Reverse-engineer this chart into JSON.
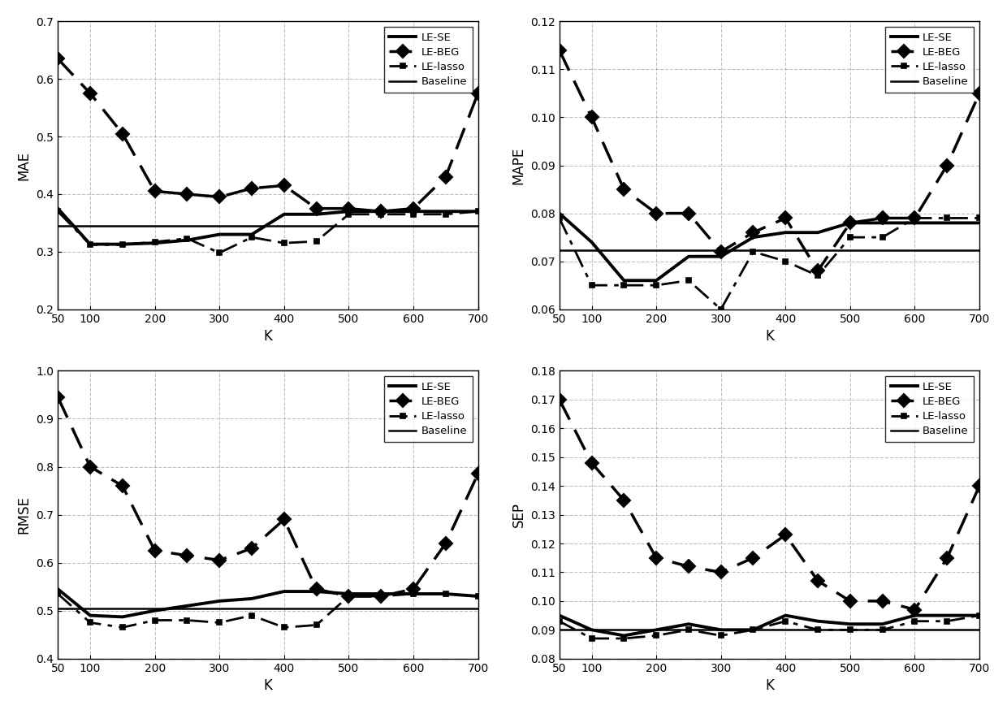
{
  "K": [
    50,
    100,
    150,
    200,
    250,
    300,
    350,
    400,
    450,
    500,
    550,
    600,
    650,
    700
  ],
  "MAE": {
    "LE_SE": [
      0.375,
      0.313,
      0.313,
      0.315,
      0.32,
      0.33,
      0.33,
      0.365,
      0.365,
      0.37,
      0.37,
      0.37,
      0.37,
      0.37
    ],
    "LE_BEG": [
      0.635,
      0.575,
      0.505,
      0.405,
      0.4,
      0.395,
      0.41,
      0.415,
      0.375,
      0.375,
      0.37,
      0.375,
      0.43,
      0.575
    ],
    "LE_lasso": [
      0.37,
      0.312,
      0.312,
      0.317,
      0.323,
      0.298,
      0.325,
      0.315,
      0.318,
      0.365,
      0.365,
      0.365,
      0.365,
      0.37
    ],
    "Baseline": 0.345
  },
  "MAPE": {
    "LE_SE": [
      0.08,
      0.074,
      0.066,
      0.066,
      0.071,
      0.071,
      0.075,
      0.076,
      0.076,
      0.078,
      0.078,
      0.078,
      0.078,
      0.078
    ],
    "LE_BEG": [
      0.114,
      0.1,
      0.085,
      0.08,
      0.08,
      0.072,
      0.076,
      0.079,
      0.068,
      0.078,
      0.079,
      0.079,
      0.09,
      0.105
    ],
    "LE_lasso": [
      0.079,
      0.065,
      0.065,
      0.065,
      0.066,
      0.06,
      0.072,
      0.07,
      0.067,
      0.075,
      0.075,
      0.079,
      0.079,
      0.079
    ],
    "Baseline": 0.0723
  },
  "RMSE": {
    "LE_SE": [
      0.545,
      0.49,
      0.487,
      0.5,
      0.51,
      0.52,
      0.525,
      0.54,
      0.54,
      0.535,
      0.535,
      0.535,
      0.535,
      0.53
    ],
    "LE_BEG": [
      0.945,
      0.8,
      0.76,
      0.625,
      0.615,
      0.605,
      0.63,
      0.69,
      0.545,
      0.53,
      0.53,
      0.545,
      0.64,
      0.785
    ],
    "LE_lasso": [
      0.535,
      0.475,
      0.465,
      0.48,
      0.48,
      0.475,
      0.49,
      0.465,
      0.47,
      0.53,
      0.53,
      0.535,
      0.535,
      0.53
    ],
    "Baseline": 0.505
  },
  "SEP": {
    "LE_SE": [
      0.095,
      0.09,
      0.088,
      0.09,
      0.092,
      0.09,
      0.09,
      0.095,
      0.093,
      0.092,
      0.092,
      0.095,
      0.095,
      0.095
    ],
    "LE_BEG": [
      0.17,
      0.148,
      0.135,
      0.115,
      0.112,
      0.11,
      0.115,
      0.123,
      0.107,
      0.1,
      0.1,
      0.097,
      0.115,
      0.14
    ],
    "LE_lasso": [
      0.093,
      0.087,
      0.087,
      0.088,
      0.09,
      0.088,
      0.09,
      0.093,
      0.09,
      0.09,
      0.09,
      0.093,
      0.093,
      0.095
    ],
    "Baseline": 0.09
  },
  "ylim_MAE": [
    0.2,
    0.7
  ],
  "ylim_MAPE": [
    0.06,
    0.12
  ],
  "ylim_RMSE": [
    0.4,
    1.0
  ],
  "ylim_SEP": [
    0.08,
    0.18
  ],
  "yticks_MAE": [
    0.2,
    0.3,
    0.4,
    0.5,
    0.6,
    0.7
  ],
  "yticks_MAPE": [
    0.06,
    0.07,
    0.08,
    0.09,
    0.1,
    0.11,
    0.12
  ],
  "yticks_RMSE": [
    0.4,
    0.5,
    0.6,
    0.7,
    0.8,
    0.9,
    1.0
  ],
  "yticks_SEP": [
    0.08,
    0.09,
    0.1,
    0.11,
    0.12,
    0.13,
    0.14,
    0.15,
    0.16,
    0.17,
    0.18
  ],
  "xticks": [
    50,
    100,
    200,
    300,
    400,
    500,
    600,
    700
  ],
  "xlabel": "K",
  "color": "#000000",
  "background": "#ffffff",
  "grid_color": "#999999"
}
